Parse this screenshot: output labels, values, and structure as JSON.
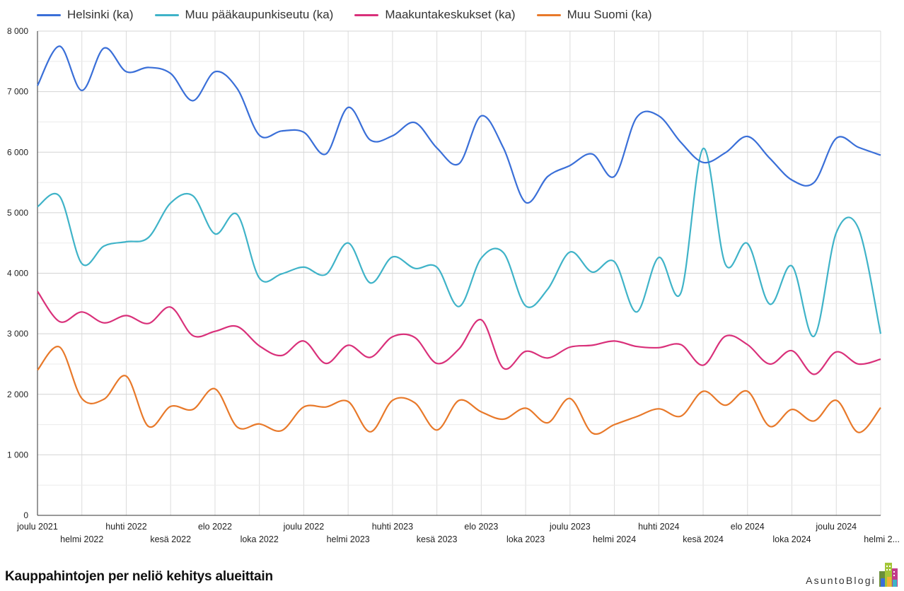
{
  "chart_data": {
    "type": "line",
    "title": "Kauppahintojen per neliö kehitys alueittain",
    "brand": "AsuntoBlogi",
    "ylim": [
      0,
      8000
    ],
    "y_ticks": [
      "0",
      "1 000",
      "2 000",
      "3 000",
      "4 000",
      "5 000",
      "6 000",
      "7 000",
      "8 000"
    ],
    "y_tick_values": [
      0,
      1000,
      2000,
      3000,
      4000,
      5000,
      6000,
      7000,
      8000
    ],
    "x_label_rows": [
      [
        "joulu 2021",
        "huhti 2022",
        "elo 2022",
        "joulu 2022",
        "huhti 2023",
        "elo 2023",
        "joulu 2023",
        "huhti 2024",
        "elo 2024",
        "joulu 2024"
      ],
      [
        "helmi 2022",
        "kesä 2022",
        "loka 2022",
        "helmi 2023",
        "kesä 2023",
        "loka 2023",
        "helmi 2024",
        "kesä 2024",
        "loka 2024",
        "helmi 2..."
      ]
    ],
    "grid": "on",
    "legend_position": "top",
    "x": [
      "2021-12",
      "2022-01",
      "2022-02",
      "2022-03",
      "2022-04",
      "2022-05",
      "2022-06",
      "2022-07",
      "2022-08",
      "2022-09",
      "2022-10",
      "2022-11",
      "2022-12",
      "2023-01",
      "2023-02",
      "2023-03",
      "2023-04",
      "2023-05",
      "2023-06",
      "2023-07",
      "2023-08",
      "2023-09",
      "2023-10",
      "2023-11",
      "2023-12",
      "2024-01",
      "2024-02",
      "2024-03",
      "2024-04",
      "2024-05",
      "2024-06",
      "2024-07",
      "2024-08",
      "2024-09",
      "2024-10",
      "2024-11",
      "2024-12",
      "2025-01",
      "2025-02"
    ],
    "series": [
      {
        "name": "Helsinki (ka)",
        "color": "#3a6fd8",
        "values": [
          7100,
          7750,
          7020,
          7720,
          7330,
          7400,
          7300,
          6850,
          7330,
          7050,
          6280,
          6350,
          6330,
          5970,
          6740,
          6200,
          6270,
          6490,
          6070,
          5810,
          6600,
          6070,
          5170,
          5600,
          5780,
          5970,
          5600,
          6570,
          6600,
          6160,
          5830,
          5990,
          6260,
          5900,
          5540,
          5500,
          6230,
          6080,
          5950
        ]
      },
      {
        "name": "Muu pääkaupunkiseutu (ka)",
        "color": "#3fb3c8",
        "values": [
          5100,
          5270,
          4160,
          4450,
          4520,
          4590,
          5160,
          5280,
          4650,
          4970,
          3920,
          3990,
          4100,
          3980,
          4500,
          3840,
          4270,
          4080,
          4100,
          3450,
          4250,
          4340,
          3460,
          3740,
          4350,
          4020,
          4190,
          3360,
          4260,
          3680,
          6060,
          4150,
          4490,
          3490,
          4120,
          2960,
          4670,
          4740,
          3000
        ]
      },
      {
        "name": "Maakuntakeskukset (ka)",
        "color": "#d9307a",
        "values": [
          3700,
          3200,
          3360,
          3180,
          3300,
          3170,
          3440,
          2970,
          3040,
          3120,
          2800,
          2640,
          2880,
          2510,
          2810,
          2610,
          2950,
          2940,
          2510,
          2750,
          3230,
          2430,
          2710,
          2600,
          2780,
          2810,
          2880,
          2790,
          2770,
          2820,
          2480,
          2960,
          2820,
          2500,
          2720,
          2330,
          2700,
          2500,
          2580
        ]
      },
      {
        "name": "Muu Suomi (ka)",
        "color": "#e8792a",
        "values": [
          2400,
          2780,
          1930,
          1920,
          2300,
          1470,
          1800,
          1750,
          2090,
          1460,
          1510,
          1400,
          1790,
          1790,
          1880,
          1380,
          1900,
          1860,
          1410,
          1900,
          1710,
          1590,
          1770,
          1530,
          1930,
          1360,
          1500,
          1630,
          1760,
          1640,
          2050,
          1820,
          2050,
          1470,
          1750,
          1560,
          1900,
          1370,
          1780
        ]
      }
    ]
  }
}
